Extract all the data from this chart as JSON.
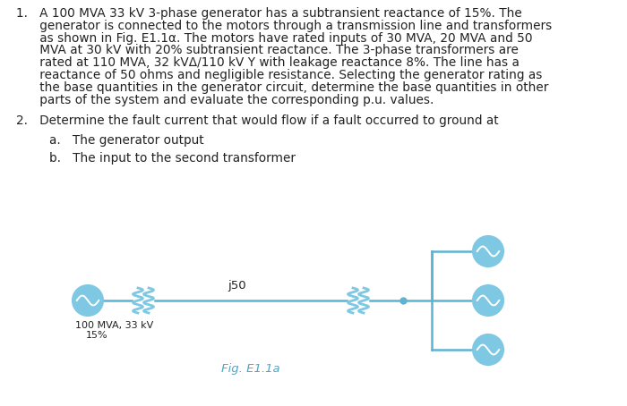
{
  "background_color": "#ffffff",
  "text_color": "#222222",
  "diagram_color": "#7ec8e3",
  "diagram_line_color": "#5ab4d4",
  "fig_caption": "Fig. E1.1a",
  "fig_caption_color": "#4da6c8",
  "item1_lines": [
    "1.   A 100 MVA 33 kV 3-phase generator has a subtransient reactance of 15%. The",
    "      generator is connected to the motors through a transmission line and transformers",
    "      as shown in Fig. E1.1α. The motors have rated inputs of 30 MVA, 20 MVA and 50",
    "      MVA at 30 kV with 20% subtransient reactance. The 3-phase transformers are",
    "      rated at 110 MVA, 32 kVΔ/110 kV Y with leakage reactance 8%. The line has a",
    "      reactance of 50 ohms and negligible resistance. Selecting the generator rating as",
    "      the base quantities in the generator circuit, determine the base quantities in other",
    "      parts of the system and evaluate the corresponding p.u. values."
  ],
  "item2_line": "2.   Determine the fault current that would flow if a fault occurred to ground at",
  "item2a_line": "a.   The generator output",
  "item2b_line": "b.   The input to the second transformer",
  "fontsize_body": 9.8,
  "fontsize_caption": 9.5,
  "fontsize_label": 8.0,
  "gen_label_line1": "100 MVA, 33 kV",
  "gen_label_line2": "15%",
  "line_label": "j50"
}
